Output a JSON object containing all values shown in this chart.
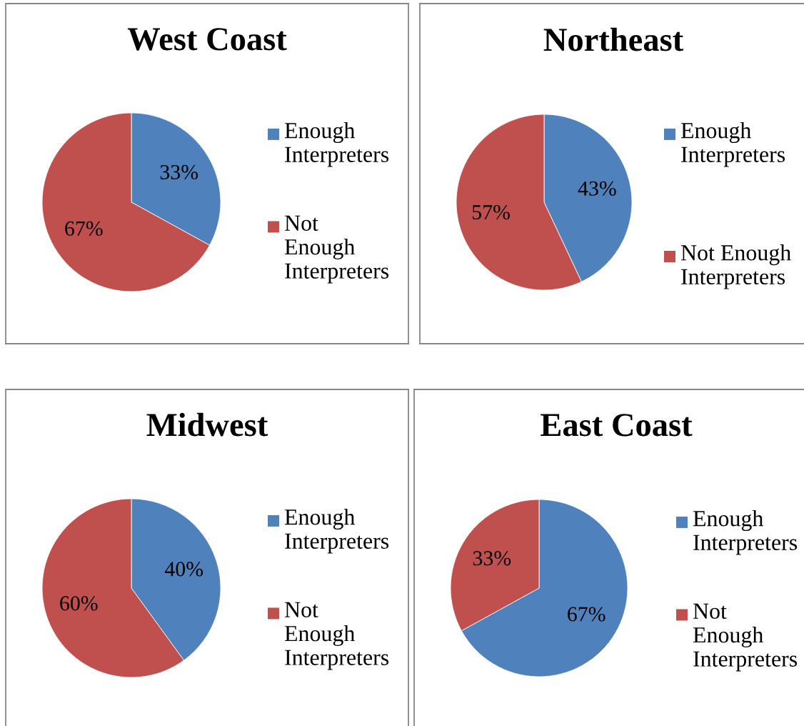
{
  "chart_data": [
    {
      "type": "pie",
      "title": "West Coast",
      "categories": [
        "Enough Interpreters",
        "Not Enough Interpreters"
      ],
      "values": [
        33,
        67
      ],
      "colors": [
        "#4f81bd",
        "#c0504d"
      ],
      "value_labels": [
        "33%",
        "67%"
      ],
      "legend": "right"
    },
    {
      "type": "pie",
      "title": "Northeast",
      "categories": [
        "Enough Interpreters",
        "Not Enough Interpreters"
      ],
      "values": [
        43,
        57
      ],
      "colors": [
        "#4f81bd",
        "#c0504d"
      ],
      "value_labels": [
        "43%",
        "57%"
      ],
      "legend": "right"
    },
    {
      "type": "pie",
      "title": "Midwest",
      "categories": [
        "Enough Interpreters",
        "Not Enough Interpreters"
      ],
      "values": [
        40,
        60
      ],
      "colors": [
        "#4f81bd",
        "#c0504d"
      ],
      "value_labels": [
        "40%",
        "60%"
      ],
      "legend": "right"
    },
    {
      "type": "pie",
      "title": "East Coast",
      "categories": [
        "Enough Interpreters",
        "Not Enough Interpreters"
      ],
      "values": [
        67,
        33
      ],
      "colors": [
        "#4f81bd",
        "#c0504d"
      ],
      "value_labels": [
        "67%",
        "33%"
      ],
      "legend": "right"
    }
  ]
}
